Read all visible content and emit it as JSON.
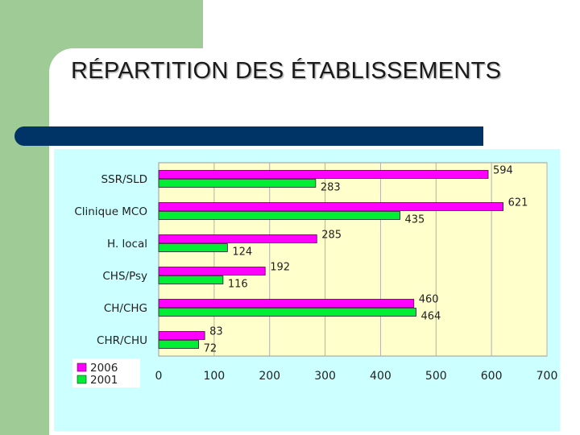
{
  "slide": {
    "title": "RÉPARTITION DES ÉTABLISSEMENTS"
  },
  "colors": {
    "series_2006": "#ff00ff",
    "series_2001": "#00ee33",
    "plot_background": "#ffffcc",
    "chart_background": "#ccffff",
    "title_bar": "#003366",
    "side_block": "#9fcc96"
  },
  "chart_data": {
    "type": "bar",
    "orientation": "horizontal",
    "categories": [
      "SSR/SLD",
      "Clinique MCO",
      "H. local",
      "CHS/Psy",
      "CH/CHG",
      "CHR/CHU"
    ],
    "series": [
      {
        "name": "2006",
        "values": [
          594,
          621,
          285,
          192,
          460,
          83
        ]
      },
      {
        "name": "2001",
        "values": [
          283,
          435,
          124,
          116,
          464,
          72
        ]
      }
    ],
    "xlim": [
      0,
      700
    ],
    "xticks": [
      0,
      100,
      200,
      300,
      400,
      500,
      600,
      700
    ],
    "grid": true,
    "legend_position": "bottom-left",
    "title": "",
    "xlabel": "",
    "ylabel": ""
  }
}
